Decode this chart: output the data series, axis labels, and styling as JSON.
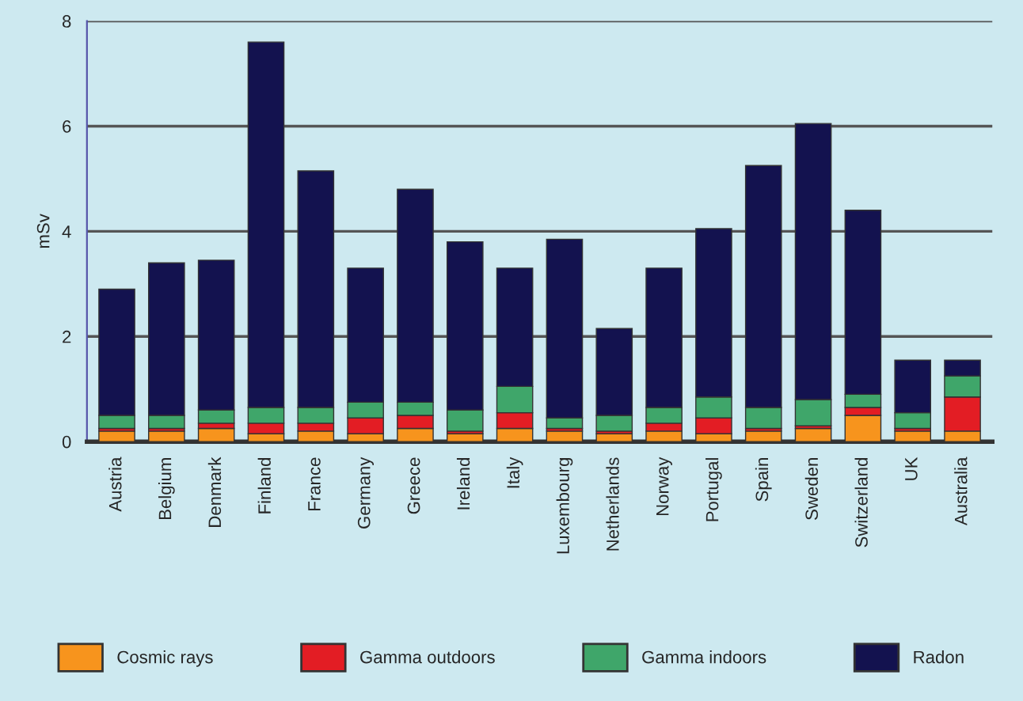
{
  "chart_data": {
    "type": "bar",
    "stacked": true,
    "ylabel": "mSv",
    "categories": [
      "Austria",
      "Belgium",
      "Denmark",
      "Finland",
      "France",
      "Germany",
      "Greece",
      "Ireland",
      "Italy",
      "Luxembourg",
      "Netherlands",
      "Norway",
      "Portugal",
      "Spain",
      "Sweden",
      "Switzerland",
      "UK",
      "Australia"
    ],
    "series": [
      {
        "name": "Cosmic rays",
        "color": "#f7941d",
        "values": [
          0.2,
          0.2,
          0.25,
          0.15,
          0.2,
          0.15,
          0.25,
          0.15,
          0.25,
          0.2,
          0.15,
          0.2,
          0.15,
          0.2,
          0.25,
          0.5,
          0.2,
          0.2
        ]
      },
      {
        "name": "Gamma outdoors",
        "color": "#e31d24",
        "values": [
          0.05,
          0.05,
          0.1,
          0.2,
          0.15,
          0.3,
          0.25,
          0.05,
          0.3,
          0.05,
          0.05,
          0.15,
          0.3,
          0.05,
          0.05,
          0.15,
          0.05,
          0.65
        ]
      },
      {
        "name": "Gamma indoors",
        "color": "#3fa66a",
        "values": [
          0.25,
          0.25,
          0.25,
          0.3,
          0.3,
          0.3,
          0.25,
          0.4,
          0.5,
          0.2,
          0.3,
          0.3,
          0.4,
          0.4,
          0.5,
          0.25,
          0.3,
          0.4
        ]
      },
      {
        "name": "Radon",
        "color": "#13124f",
        "values": [
          2.4,
          2.9,
          2.85,
          6.95,
          4.5,
          2.55,
          4.05,
          3.2,
          2.25,
          3.4,
          1.65,
          2.65,
          3.2,
          4.6,
          5.25,
          3.5,
          1.0,
          0.3
        ]
      }
    ],
    "ylim": [
      0,
      8
    ],
    "yticks": [
      0,
      2,
      4,
      6,
      8
    ],
    "grid": "y",
    "legend": "bottom"
  }
}
